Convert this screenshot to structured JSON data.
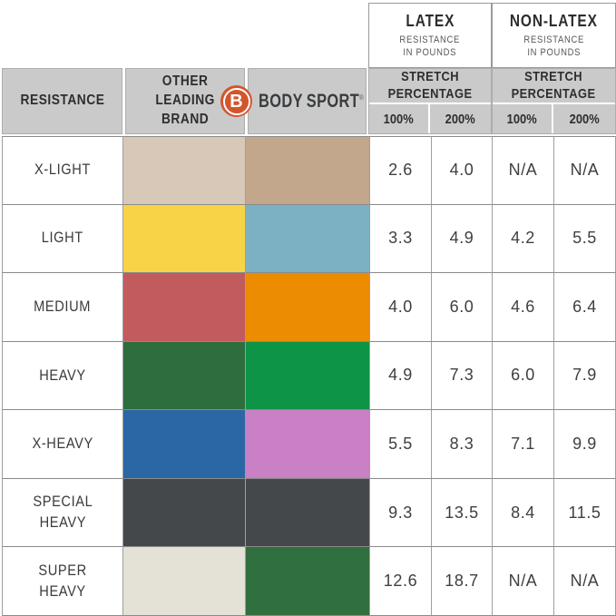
{
  "header": {
    "latex": {
      "title": "LATEX",
      "subtitle": "RESISTANCE\nIN POUNDS"
    },
    "non_latex": {
      "title": "NON-LATEX",
      "subtitle": "RESISTANCE\nIN POUNDS"
    },
    "resistance_label": "RESISTANCE",
    "other_brand_label": "OTHER\nLEADING\nBRAND",
    "stretch_label": "STRETCH\nPERCENTAGE",
    "pct_100": "100%",
    "pct_200": "200%",
    "brand": {
      "logo_letter": "B",
      "word1": "BODY",
      "word2": "SPORT",
      "reg_mark": "®",
      "logo_color": "#d4552c",
      "text_color": "#3a3d3f"
    }
  },
  "colors": {
    "header_bg": "#cacaca",
    "grid_border": "#8f8f8f",
    "text_dark": "#333333",
    "subtitle_text": "#575757",
    "value_text": "#3f3f3f"
  },
  "chart_data": {
    "type": "table",
    "title": "Body Sport vs Other Leading Brand resistance band comparison",
    "columns": [
      "RESISTANCE",
      "OTHER LEADING BRAND",
      "BODY SPORT",
      "LATEX STRETCH 100%",
      "LATEX STRETCH 200%",
      "NON-LATEX STRETCH 100%",
      "NON-LATEX STRETCH 200%"
    ],
    "rows": [
      {
        "resistance": "X-LIGHT",
        "other_brand_color": "#d8c8b7",
        "body_sport_color": "#c2a78c",
        "latex_100": "2.6",
        "latex_200": "4.0",
        "non_latex_100": "N/A",
        "non_latex_200": "N/A"
      },
      {
        "resistance": "LIGHT",
        "other_brand_color": "#f8d348",
        "body_sport_color": "#7cb1c3",
        "latex_100": "3.3",
        "latex_200": "4.9",
        "non_latex_100": "4.2",
        "non_latex_200": "5.5"
      },
      {
        "resistance": "MEDIUM",
        "other_brand_color": "#c25b5e",
        "body_sport_color": "#ec8c00",
        "latex_100": "4.0",
        "latex_200": "6.0",
        "non_latex_100": "4.6",
        "non_latex_200": "6.4"
      },
      {
        "resistance": "HEAVY",
        "other_brand_color": "#2e6d3d",
        "body_sport_color": "#0d9447",
        "latex_100": "4.9",
        "latex_200": "7.3",
        "non_latex_100": "6.0",
        "non_latex_200": "7.9"
      },
      {
        "resistance": "X-HEAVY",
        "other_brand_color": "#2c67a5",
        "body_sport_color": "#c980c4",
        "latex_100": "5.5",
        "latex_200": "8.3",
        "non_latex_100": "7.1",
        "non_latex_200": "9.9"
      },
      {
        "resistance": "SPECIAL\nHEAVY",
        "other_brand_color": "#45484b",
        "body_sport_color": "#45484b",
        "latex_100": "9.3",
        "latex_200": "13.5",
        "non_latex_100": "8.4",
        "non_latex_200": "11.5"
      },
      {
        "resistance": "SUPER\nHEAVY",
        "other_brand_color": "#e4e1d6",
        "body_sport_color": "#30703e",
        "latex_100": "12.6",
        "latex_200": "18.7",
        "non_latex_100": "N/A",
        "non_latex_200": "N/A"
      }
    ]
  }
}
